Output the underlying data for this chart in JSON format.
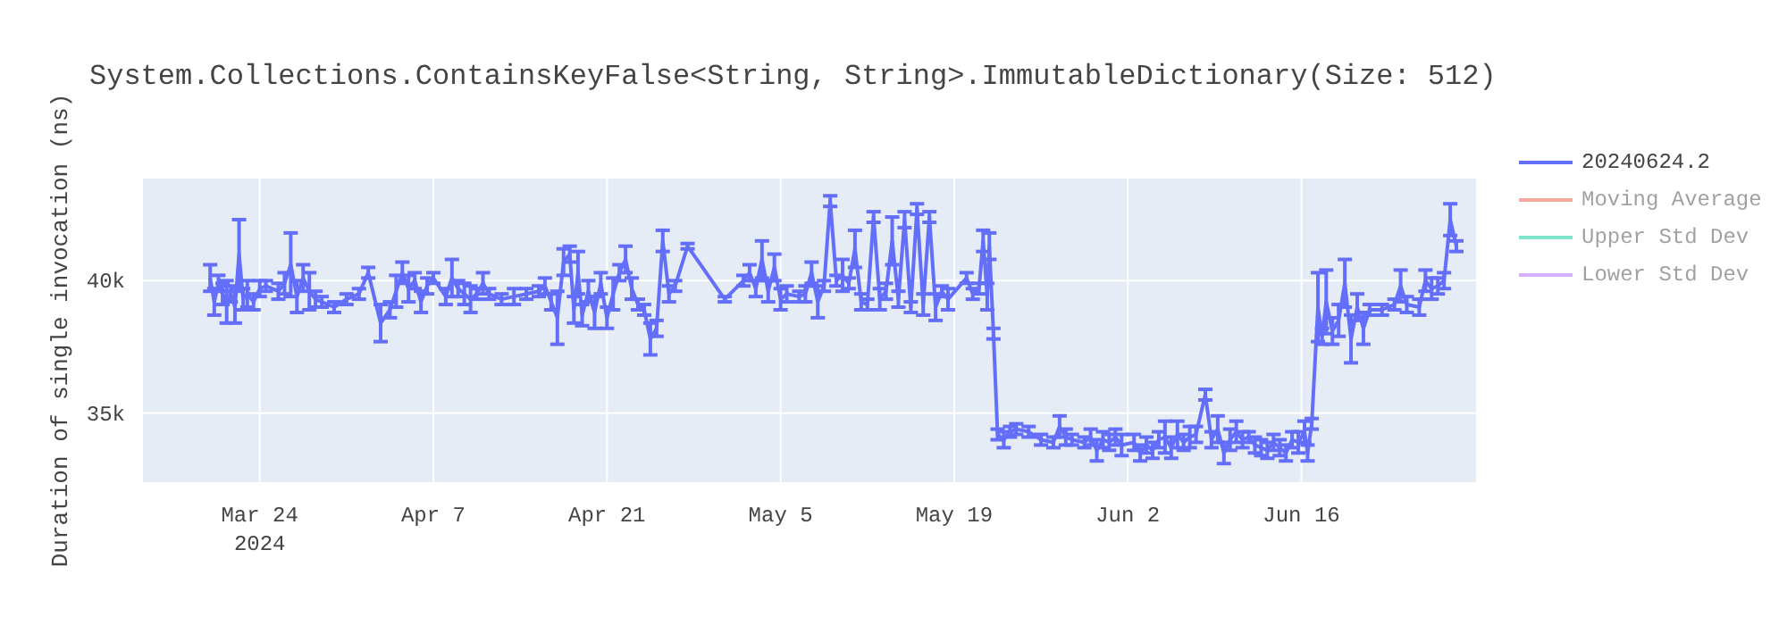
{
  "chart_data": {
    "type": "line",
    "title": "System.Collections.ContainsKeyFalse<String, String>.ImmutableDictionary(Size: 512)",
    "ylabel": "Duration of single invocation (ns)",
    "xlim": [
      "2024-03-14T14:00",
      "2024-06-30T02:00"
    ],
    "xticks": [
      {
        "value": "2024-03-24",
        "label": "Mar 24\n2024"
      },
      {
        "value": "2024-04-07",
        "label": "Apr 7"
      },
      {
        "value": "2024-04-21",
        "label": "Apr 21"
      },
      {
        "value": "2024-05-05",
        "label": "May 5"
      },
      {
        "value": "2024-05-19",
        "label": "May 19"
      },
      {
        "value": "2024-06-02",
        "label": "Jun 2"
      },
      {
        "value": "2024-06-16",
        "label": "Jun 16"
      }
    ],
    "ylim": [
      32400,
      43850
    ],
    "yticks": [
      {
        "value": 35000,
        "label": "35k"
      },
      {
        "value": 40000,
        "label": "40k"
      }
    ],
    "grid": true,
    "legend": "top right",
    "marker": "none",
    "line_style": "solid",
    "series": [
      {
        "name": "20240624.2",
        "color": "#636efa",
        "x": [
          "2024-03-20T00:00",
          "2024-03-20T08:00",
          "2024-03-20T16:00",
          "2024-03-21T00:00",
          "2024-03-21T08:00",
          "2024-03-21T16:00",
          "2024-03-22T00:00",
          "2024-03-22T08:00",
          "2024-03-22T16:00",
          "2024-03-23T00:00",
          "2024-03-23T12:00",
          "2024-03-24T00:00",
          "2024-03-24T12:00",
          "2024-03-25T12:00",
          "2024-03-26T00:00",
          "2024-03-26T12:00",
          "2024-03-27T00:00",
          "2024-03-27T12:00",
          "2024-03-28T00:00",
          "2024-03-28T12:00",
          "2024-03-29T00:00",
          "2024-03-30T00:00",
          "2024-03-31T00:00",
          "2024-04-01T00:00",
          "2024-04-01T18:00",
          "2024-04-02T18:00",
          "2024-04-03T12:00",
          "2024-04-04T00:00",
          "2024-04-04T12:00",
          "2024-04-05T00:00",
          "2024-04-05T12:00",
          "2024-04-06T00:00",
          "2024-04-06T12:00",
          "2024-04-07T00:00",
          "2024-04-08T00:00",
          "2024-04-08T12:00",
          "2024-04-09T00:00",
          "2024-04-09T12:00",
          "2024-04-10T00:00",
          "2024-04-10T12:00",
          "2024-04-11T00:00",
          "2024-04-11T12:00",
          "2024-04-12T12:00",
          "2024-04-13T12:00",
          "2024-04-14T12:00",
          "2024-04-15T12:00",
          "2024-04-16T00:00",
          "2024-04-16T12:00",
          "2024-04-17T00:00",
          "2024-04-17T12:00",
          "2024-04-18T00:00",
          "2024-04-18T08:00",
          "2024-04-18T16:00",
          "2024-04-19T00:00",
          "2024-04-19T12:00",
          "2024-04-20T00:00",
          "2024-04-20T12:00",
          "2024-04-21T00:00",
          "2024-04-21T12:00",
          "2024-04-22T00:00",
          "2024-04-22T12:00",
          "2024-04-23T00:00",
          "2024-04-23T12:00",
          "2024-04-24T00:00",
          "2024-04-24T12:00",
          "2024-04-25T00:00",
          "2024-04-25T12:00",
          "2024-04-26T00:00",
          "2024-04-26T12:00",
          "2024-04-27T12:00",
          "2024-04-30T12:00",
          "2024-05-02T00:00",
          "2024-05-02T12:00",
          "2024-05-03T00:00",
          "2024-05-03T12:00",
          "2024-05-04T00:00",
          "2024-05-04T12:00",
          "2024-05-05T00:00",
          "2024-05-05T12:00",
          "2024-05-06T12:00",
          "2024-05-07T00:00",
          "2024-05-07T12:00",
          "2024-05-08T00:00",
          "2024-05-08T12:00",
          "2024-05-09T00:00",
          "2024-05-09T12:00",
          "2024-05-10T00:00",
          "2024-05-10T12:00",
          "2024-05-11T00:00",
          "2024-05-11T12:00",
          "2024-05-12T00:00",
          "2024-05-12T12:00",
          "2024-05-13T00:00",
          "2024-05-13T12:00",
          "2024-05-14T00:00",
          "2024-05-14T12:00",
          "2024-05-15T00:00",
          "2024-05-15T12:00",
          "2024-05-16T00:00",
          "2024-05-16T12:00",
          "2024-05-17T00:00",
          "2024-05-17T12:00",
          "2024-05-18T00:00",
          "2024-05-18T12:00",
          "2024-05-20T00:00",
          "2024-05-20T12:00",
          "2024-05-21T00:00",
          "2024-05-21T08:00",
          "2024-05-21T16:00",
          "2024-05-21T20:00",
          "2024-05-22T04:00",
          "2024-05-22T12:00",
          "2024-05-23T00:00",
          "2024-05-23T12:00",
          "2024-05-24T00:00",
          "2024-05-25T00:00",
          "2024-05-26T00:00",
          "2024-05-27T00:00",
          "2024-05-27T12:00",
          "2024-05-28T00:00",
          "2024-05-28T12:00",
          "2024-05-29T12:00",
          "2024-05-30T00:00",
          "2024-05-30T12:00",
          "2024-05-31T00:00",
          "2024-05-31T12:00",
          "2024-06-01T00:00",
          "2024-06-01T12:00",
          "2024-06-02T12:00",
          "2024-06-03T00:00",
          "2024-06-03T12:00",
          "2024-06-04T00:00",
          "2024-06-04T12:00",
          "2024-06-05T00:00",
          "2024-06-05T12:00",
          "2024-06-06T00:00",
          "2024-06-06T12:00",
          "2024-06-07T00:00",
          "2024-06-07T12:00",
          "2024-06-08T06:00",
          "2024-06-08T18:00",
          "2024-06-09T06:00",
          "2024-06-09T18:00",
          "2024-06-10T06:00",
          "2024-06-10T18:00",
          "2024-06-11T06:00",
          "2024-06-11T18:00",
          "2024-06-12T06:00",
          "2024-06-12T18:00",
          "2024-06-13T06:00",
          "2024-06-13T18:00",
          "2024-06-14T06:00",
          "2024-06-14T18:00",
          "2024-06-15T06:00",
          "2024-06-15T18:00",
          "2024-06-16T06:00",
          "2024-06-16T12:00",
          "2024-06-16T20:00",
          "2024-06-17T08:00",
          "2024-06-17T16:00",
          "2024-06-18T00:00",
          "2024-06-18T12:00",
          "2024-06-19T00:00",
          "2024-06-19T12:00",
          "2024-06-20T00:00",
          "2024-06-20T12:00",
          "2024-06-21T00:00",
          "2024-06-21T12:00",
          "2024-06-22T12:00",
          "2024-06-23T12:00",
          "2024-06-24T00:00",
          "2024-06-24T12:00",
          "2024-06-25T12:00",
          "2024-06-26T00:00",
          "2024-06-26T12:00",
          "2024-06-27T00:00",
          "2024-06-27T12:00",
          "2024-06-28T00:00",
          "2024-06-28T12:00"
        ],
        "values": [
          40100,
          39200,
          39900,
          39500,
          39200,
          39500,
          39000,
          41000,
          39300,
          39500,
          39200,
          39700,
          39800,
          39600,
          39900,
          40600,
          39400,
          40100,
          39600,
          39300,
          39200,
          39000,
          39300,
          39500,
          40300,
          38400,
          38900,
          39600,
          40300,
          39700,
          40000,
          39200,
          39800,
          40100,
          39400,
          40100,
          39700,
          39500,
          39300,
          39500,
          39900,
          39500,
          39300,
          39400,
          39500,
          39600,
          39800,
          39200,
          38600,
          40700,
          41000,
          38900,
          40300,
          38700,
          39600,
          38800,
          39900,
          38600,
          39500,
          40300,
          40800,
          39700,
          39100,
          38900,
          37800,
          38200,
          41500,
          39500,
          39800,
          41300,
          39300,
          40000,
          40300,
          39700,
          40800,
          39600,
          40500,
          39300,
          39500,
          39400,
          39500,
          40300,
          39200,
          39800,
          43000,
          40000,
          40200,
          39900,
          41200,
          39200,
          39100,
          42400,
          39300,
          39600,
          41500,
          39300,
          42300,
          39000,
          42700,
          39100,
          42400,
          39000,
          39600,
          39300,
          40100,
          39500,
          39700,
          41500,
          39400,
          41300,
          38000,
          34200,
          34000,
          34300,
          34400,
          34300,
          34000,
          33900,
          34500,
          34100,
          34000,
          33900,
          34100,
          33600,
          34000,
          33900,
          34100,
          33800,
          33900,
          33500,
          33800,
          33600,
          34000,
          34100,
          33700,
          34200,
          33900,
          34100,
          34200,
          35700,
          34000,
          34400,
          33500,
          34000,
          34300,
          34000,
          34100,
          33800,
          33700,
          33600,
          33900,
          33700,
          33500,
          34000,
          33900,
          34300,
          33500,
          34600,
          39000,
          37900,
          39200,
          38100,
          38500,
          39900,
          37800,
          39000,
          38200,
          38900,
          38900,
          39100,
          39800,
          39100,
          39000,
          40000,
          39700,
          39800,
          40000,
          42300,
          41300
        ],
        "errors": [
          500,
          500,
          300,
          400,
          800,
          300,
          600,
          1300,
          400,
          500,
          300,
          300,
          200,
          300,
          400,
          1200,
          600,
          500,
          700,
          300,
          200,
          200,
          200,
          200,
          200,
          700,
          300,
          600,
          400,
          500,
          300,
          400,
          300,
          200,
          300,
          700,
          300,
          400,
          500,
          200,
          400,
          200,
          200,
          300,
          200,
          200,
          300,
          300,
          1000,
          500,
          300,
          500,
          800,
          400,
          400,
          600,
          400,
          400,
          600,
          300,
          500,
          400,
          200,
          200,
          600,
          300,
          400,
          300,
          200,
          100,
          100,
          200,
          300,
          300,
          700,
          400,
          500,
          400,
          300,
          200,
          300,
          400,
          600,
          200,
          200,
          200,
          600,
          200,
          700,
          300,
          200,
          200,
          400,
          300,
          900,
          300,
          300,
          200,
          200,
          400,
          200,
          500,
          200,
          400,
          200,
          200,
          200,
          400,
          500,
          500,
          200,
          200,
          300,
          200,
          200,
          200,
          200,
          200,
          400,
          300,
          200,
          200,
          300,
          400,
          300,
          300,
          300,
          400,
          300,
          300,
          300,
          300,
          300,
          600,
          400,
          500,
          300,
          400,
          300,
          200,
          300,
          500,
          400,
          400,
          400,
          300,
          200,
          300,
          300,
          300,
          300,
          300,
          300,
          300,
          400,
          400,
          300,
          200,
          1300,
          300,
          1200,
          500,
          600,
          900,
          900,
          500,
          600,
          200,
          200,
          200,
          600,
          300,
          300,
          400,
          400,
          300,
          300,
          600,
          200
        ]
      },
      {
        "name": "Moving Average",
        "color": "#ef553b"
      },
      {
        "name": "Upper Std Dev",
        "color": "#00cc96"
      },
      {
        "name": "Lower Std Dev",
        "color": "#ab63fa"
      }
    ]
  }
}
